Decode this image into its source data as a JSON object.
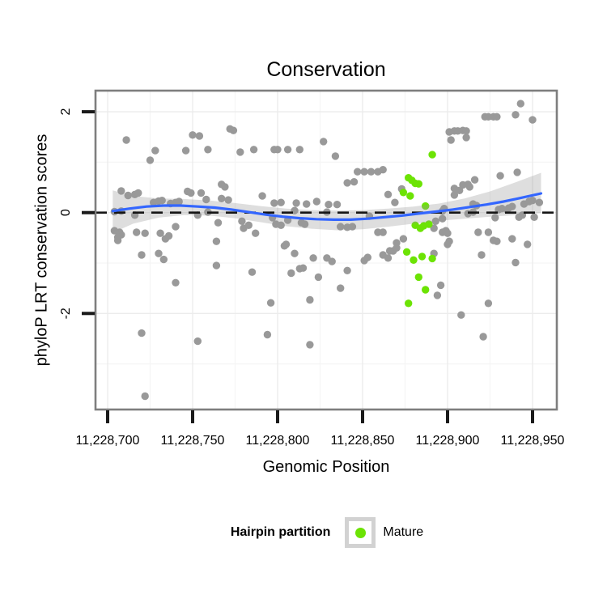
{
  "legend": {
    "title": "Hairpin partition",
    "items": [
      {
        "label": "Mature",
        "color_key": "mature_green"
      }
    ]
  },
  "colors": {
    "point_gray": "#999999",
    "mature_green": "#6CE304",
    "smooth_blue": "#3366FF",
    "band_gray": "#999999",
    "band_opacity": 0.32,
    "panel_border": "#7E7E7E",
    "grid_major": "#ECECEC",
    "grid_minor": "#F5F5F5",
    "tick": "#1A1A1A",
    "dashed_line": "#151515",
    "text": "#000000"
  },
  "chart_data": {
    "type": "scatter",
    "title": "Conservation",
    "xlabel": "Genomic Position",
    "ylabel": "phyloP LRT conservation scores",
    "x_domain": [
      11228693,
      11228964
    ],
    "y_domain": [
      -3.91,
      2.42
    ],
    "grid": true,
    "legend_position": "bottom",
    "x_ticks": [
      {
        "value": 11228700,
        "label": "11,228,700"
      },
      {
        "value": 11228750,
        "label": "11,228,750"
      },
      {
        "value": 11228800,
        "label": "11,228,800"
      },
      {
        "value": 11228850,
        "label": "11,228,850"
      },
      {
        "value": 11228900,
        "label": "11,228,900"
      },
      {
        "value": 11228950,
        "label": "11,228,950"
      }
    ],
    "x_minor": [
      11228725,
      11228775,
      11228825,
      11228875,
      11228925
    ],
    "y_ticks": [
      {
        "value": 2,
        "label": "2"
      },
      {
        "value": 0,
        "label": "0"
      },
      {
        "value": -2,
        "label": "-2"
      }
    ],
    "y_minor": [
      1,
      -1,
      -3
    ],
    "reference_line": {
      "y": 0,
      "style": "dashed"
    },
    "series": [
      {
        "key": "background",
        "label": "",
        "color_key": "point_gray",
        "points": [
          [
            11228711,
            1.44
          ],
          [
            11228728,
            1.23
          ],
          [
            11228725,
            1.04
          ],
          [
            11228750,
            1.54
          ],
          [
            11228754,
            1.52
          ],
          [
            11228746,
            1.23
          ],
          [
            11228759,
            1.25
          ],
          [
            11228772,
            1.66
          ],
          [
            11228774,
            1.63
          ],
          [
            11228778,
            1.2
          ],
          [
            11228708,
            0.43
          ],
          [
            11228712,
            0.34
          ],
          [
            11228716,
            0.36
          ],
          [
            11228718,
            0.39
          ],
          [
            11228704,
            0.02
          ],
          [
            11228708,
            0.03
          ],
          [
            11228716,
            -0.05
          ],
          [
            11228727,
            0.2
          ],
          [
            11228730,
            0.23
          ],
          [
            11228732,
            0.24
          ],
          [
            11228737,
            0.18
          ],
          [
            11228740,
            0.2
          ],
          [
            11228742,
            0.22
          ],
          [
            11228747,
            0.42
          ],
          [
            11228749,
            0.39
          ],
          [
            11228755,
            0.39
          ],
          [
            11228758,
            0.26
          ],
          [
            11228767,
            0.56
          ],
          [
            11228769,
            0.51
          ],
          [
            11228767,
            0.28
          ],
          [
            11228771,
            0.25
          ],
          [
            11228759,
            0.01
          ],
          [
            11228753,
            -0.05
          ],
          [
            11228765,
            -0.2
          ],
          [
            11228779,
            -0.17
          ],
          [
            11228780,
            -0.31
          ],
          [
            11228704,
            -0.36
          ],
          [
            11228707,
            -0.39
          ],
          [
            11228708,
            -0.44
          ],
          [
            11228706,
            -0.49
          ],
          [
            11228706,
            -0.55
          ],
          [
            11228717,
            -0.39
          ],
          [
            11228722,
            -0.41
          ],
          [
            11228731,
            -0.41
          ],
          [
            11228734,
            -0.52
          ],
          [
            11228736,
            -0.46
          ],
          [
            11228740,
            -0.28
          ],
          [
            11228764,
            -0.57
          ],
          [
            11228720,
            -0.84
          ],
          [
            11228730,
            -0.81
          ],
          [
            11228733,
            -0.93
          ],
          [
            11228764,
            -1.05
          ],
          [
            11228740,
            -1.39
          ],
          [
            11228720,
            -2.39
          ],
          [
            11228753,
            -2.55
          ],
          [
            11228722,
            -3.64
          ],
          [
            11228786,
            1.25
          ],
          [
            11228798,
            1.25
          ],
          [
            11228800,
            1.25
          ],
          [
            11228806,
            1.25
          ],
          [
            11228813,
            1.25
          ],
          [
            11228827,
            1.41
          ],
          [
            11228834,
            1.12
          ],
          [
            11228847,
            0.81
          ],
          [
            11228851,
            0.81
          ],
          [
            11228855,
            0.81
          ],
          [
            11228859,
            0.81
          ],
          [
            11228841,
            0.59
          ],
          [
            11228845,
            0.61
          ],
          [
            11228865,
            0.36
          ],
          [
            11228869,
            0.2
          ],
          [
            11228791,
            0.33
          ],
          [
            11228798,
            0.19
          ],
          [
            11228802,
            0.2
          ],
          [
            11228811,
            0.19
          ],
          [
            11228817,
            0.17
          ],
          [
            11228823,
            0.22
          ],
          [
            11228830,
            0.16
          ],
          [
            11228835,
            0.16
          ],
          [
            11228810,
            0.04
          ],
          [
            11228797,
            -0.1
          ],
          [
            11228806,
            -0.15
          ],
          [
            11228799,
            -0.23
          ],
          [
            11228802,
            -0.25
          ],
          [
            11228814,
            -0.2
          ],
          [
            11228816,
            -0.23
          ],
          [
            11228829,
            0.01
          ],
          [
            11228854,
            -0.07
          ],
          [
            11228837,
            -0.28
          ],
          [
            11228841,
            -0.29
          ],
          [
            11228844,
            -0.28
          ],
          [
            11228783,
            -0.25
          ],
          [
            11228787,
            -0.41
          ],
          [
            11228859,
            -0.39
          ],
          [
            11228862,
            -0.39
          ],
          [
            11228805,
            -0.63
          ],
          [
            11228870,
            -0.6
          ],
          [
            11228804,
            -0.66
          ],
          [
            11228810,
            -0.81
          ],
          [
            11228821,
            -0.9
          ],
          [
            11228829,
            -0.9
          ],
          [
            11228832,
            -0.97
          ],
          [
            11228851,
            -0.95
          ],
          [
            11228853,
            -0.89
          ],
          [
            11228862,
            -0.84
          ],
          [
            11228865,
            -0.9
          ],
          [
            11228868,
            -0.76
          ],
          [
            11228870,
            -0.7
          ],
          [
            11228785,
            -1.18
          ],
          [
            11228808,
            -1.2
          ],
          [
            11228813,
            -1.11
          ],
          [
            11228815,
            -1.1
          ],
          [
            11228824,
            -1.28
          ],
          [
            11228841,
            -1.15
          ],
          [
            11228837,
            -1.5
          ],
          [
            11228796,
            -1.79
          ],
          [
            11228819,
            -1.73
          ],
          [
            11228794,
            -2.42
          ],
          [
            11228819,
            -2.62
          ],
          [
            11228943,
            2.16
          ],
          [
            11228922,
            1.9
          ],
          [
            11228924,
            1.9
          ],
          [
            11228927,
            1.9
          ],
          [
            11228929,
            1.9
          ],
          [
            11228940,
            1.94
          ],
          [
            11228950,
            1.84
          ],
          [
            11228901,
            1.6
          ],
          [
            11228904,
            1.62
          ],
          [
            11228906,
            1.62
          ],
          [
            11228909,
            1.63
          ],
          [
            11228911,
            1.62
          ],
          [
            11228902,
            1.44
          ],
          [
            11228911,
            1.49
          ],
          [
            11228931,
            0.73
          ],
          [
            11228941,
            0.8
          ],
          [
            11228916,
            0.65
          ],
          [
            11228904,
            0.48
          ],
          [
            11228907,
            0.44
          ],
          [
            11228909,
            0.55
          ],
          [
            11228912,
            0.56
          ],
          [
            11228913,
            0.51
          ],
          [
            11228904,
            0.35
          ],
          [
            11228915,
            0.17
          ],
          [
            11228917,
            0.14
          ],
          [
            11228930,
            0.06
          ],
          [
            11228932,
            0.08
          ],
          [
            11228935,
            0.06
          ],
          [
            11228936,
            0.09
          ],
          [
            11228938,
            0.12
          ],
          [
            11228945,
            0.17
          ],
          [
            11228948,
            0.22
          ],
          [
            11228950,
            0.24
          ],
          [
            11228897,
            0.03
          ],
          [
            11228912,
            -0.02
          ],
          [
            11228915,
            0.01
          ],
          [
            11228928,
            -0.1
          ],
          [
            11228942,
            -0.09
          ],
          [
            11228944,
            -0.05
          ],
          [
            11228951,
            -0.09
          ],
          [
            11228892,
            -0.31
          ],
          [
            11228897,
            -0.39
          ],
          [
            11228900,
            -0.41
          ],
          [
            11228918,
            -0.39
          ],
          [
            11228924,
            -0.39
          ],
          [
            11228927,
            -0.55
          ],
          [
            11228929,
            -0.57
          ],
          [
            11228938,
            -0.52
          ],
          [
            11228901,
            -0.57
          ],
          [
            11228947,
            -0.63
          ],
          [
            11228892,
            -0.81
          ],
          [
            11228900,
            -0.63
          ],
          [
            11228920,
            -0.84
          ],
          [
            11228940,
            -0.99
          ],
          [
            11228896,
            -1.44
          ],
          [
            11228894,
            -1.64
          ],
          [
            11228924,
            -1.8
          ],
          [
            11228908,
            -2.03
          ],
          [
            11228921,
            -2.46
          ],
          [
            11228862,
            0.85
          ],
          [
            11228873,
            0.47
          ],
          [
            11228893,
            -0.17
          ],
          [
            11228897,
            -0.12
          ],
          [
            11228898,
            0.08
          ],
          [
            11228866,
            -0.76
          ],
          [
            11228874,
            -0.52
          ],
          [
            11228899,
            -0.36
          ],
          [
            11228954,
            0.2
          ]
        ]
      },
      {
        "key": "mature",
        "label": "Mature",
        "color_key": "mature_green",
        "points": [
          [
            11228891,
            1.15
          ],
          [
            11228877,
            0.69
          ],
          [
            11228879,
            0.64
          ],
          [
            11228881,
            0.58
          ],
          [
            11228883,
            0.57
          ],
          [
            11228874,
            0.4
          ],
          [
            11228878,
            0.33
          ],
          [
            11228887,
            0.13
          ],
          [
            11228881,
            -0.25
          ],
          [
            11228884,
            -0.31
          ],
          [
            11228886,
            -0.26
          ],
          [
            11228889,
            -0.23
          ],
          [
            11228876,
            -0.78
          ],
          [
            11228880,
            -0.94
          ],
          [
            11228885,
            -0.87
          ],
          [
            11228891,
            -0.91
          ],
          [
            11228883,
            -1.28
          ],
          [
            11228887,
            -1.53
          ],
          [
            11228877,
            -1.8
          ]
        ]
      }
    ],
    "smoother": {
      "line": [
        [
          11228703,
          0.03
        ],
        [
          11228713,
          0.08
        ],
        [
          11228723,
          0.12
        ],
        [
          11228733,
          0.14
        ],
        [
          11228743,
          0.14
        ],
        [
          11228753,
          0.12
        ],
        [
          11228763,
          0.1
        ],
        [
          11228773,
          0.06
        ],
        [
          11228783,
          0.01
        ],
        [
          11228793,
          -0.04
        ],
        [
          11228803,
          -0.08
        ],
        [
          11228813,
          -0.11
        ],
        [
          11228823,
          -0.13
        ],
        [
          11228833,
          -0.14
        ],
        [
          11228843,
          -0.14
        ],
        [
          11228853,
          -0.12
        ],
        [
          11228863,
          -0.09
        ],
        [
          11228873,
          -0.06
        ],
        [
          11228883,
          -0.02
        ],
        [
          11228893,
          0.02
        ],
        [
          11228903,
          0.06
        ],
        [
          11228913,
          0.11
        ],
        [
          11228923,
          0.16
        ],
        [
          11228933,
          0.22
        ],
        [
          11228943,
          0.29
        ],
        [
          11228955,
          0.38
        ]
      ],
      "band": [
        [
          11228703,
          0.44,
          -0.4
        ],
        [
          11228715,
          0.33,
          -0.22
        ],
        [
          11228730,
          0.28,
          -0.1
        ],
        [
          11228745,
          0.27,
          -0.05
        ],
        [
          11228760,
          0.24,
          -0.06
        ],
        [
          11228775,
          0.19,
          -0.11
        ],
        [
          11228790,
          0.13,
          -0.19
        ],
        [
          11228805,
          0.08,
          -0.27
        ],
        [
          11228820,
          0.05,
          -0.32
        ],
        [
          11228835,
          0.04,
          -0.35
        ],
        [
          11228850,
          0.05,
          -0.33
        ],
        [
          11228865,
          0.08,
          -0.28
        ],
        [
          11228880,
          0.12,
          -0.22
        ],
        [
          11228895,
          0.18,
          -0.16
        ],
        [
          11228910,
          0.28,
          -0.12
        ],
        [
          11228925,
          0.42,
          -0.08
        ],
        [
          11228940,
          0.6,
          -0.05
        ],
        [
          11228955,
          0.79,
          -0.01
        ]
      ]
    }
  }
}
